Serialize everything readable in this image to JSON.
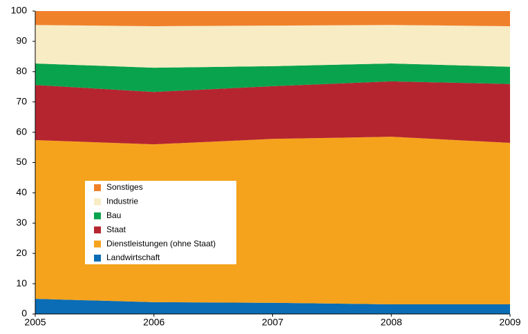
{
  "chart_data": {
    "type": "stacked-area",
    "x": [
      2005,
      2006,
      2007,
      2008,
      2009
    ],
    "series": [
      {
        "name": "Landwirtschaft",
        "color": "#0a6db5",
        "values": [
          5.0,
          3.9,
          3.7,
          3.2,
          3.2
        ]
      },
      {
        "name": "Dienstleistungen (ohne Staat)",
        "color": "#f5a31c",
        "values": [
          52.4,
          52.1,
          54.1,
          55.3,
          53.3
        ]
      },
      {
        "name": "Staat",
        "color": "#b52530",
        "values": [
          18.2,
          17.3,
          17.4,
          18.3,
          19.4
        ]
      },
      {
        "name": "Bau",
        "color": "#0aa34d",
        "values": [
          7.1,
          8.0,
          6.6,
          5.9,
          5.7
        ]
      },
      {
        "name": "Industrie",
        "color": "#f8ecc4",
        "values": [
          12.7,
          13.7,
          13.4,
          12.7,
          13.4
        ]
      },
      {
        "name": "Sonstiges",
        "color": "#f0812b",
        "values": [
          4.6,
          5.0,
          4.8,
          4.6,
          5.0
        ]
      }
    ],
    "xlim": [
      2005,
      2009
    ],
    "xticks": [
      2005,
      2006,
      2007,
      2008,
      2009
    ],
    "ylim": [
      0,
      100
    ],
    "yticks": [
      0,
      10,
      20,
      30,
      40,
      50,
      60,
      70,
      80,
      90,
      100
    ],
    "legend": "inside-left"
  }
}
